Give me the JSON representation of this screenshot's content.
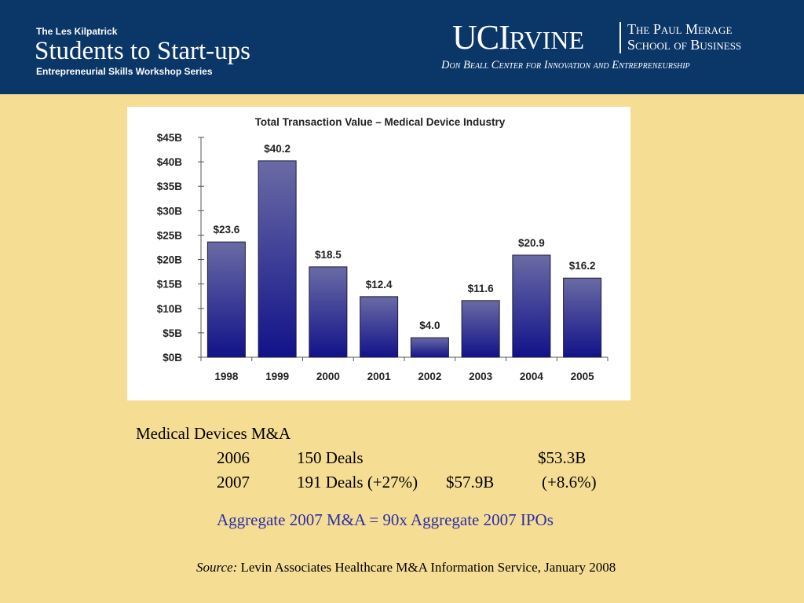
{
  "header": {
    "series_top": "The Les Kilpatrick",
    "series_title": "Students to Start-ups",
    "series_sub": "Entrepreneurial Skills Workshop Series",
    "logo_uc": "UCI",
    "logo_rvine": "RVINE",
    "school_line1": "The Paul Merage",
    "school_line2": "School of Business",
    "center_name": "Don Beall Center for Innovation and Entrepreneurship"
  },
  "chart_data": {
    "type": "bar",
    "title": "Total Transaction Value – Medical Device Industry",
    "categories": [
      "1998",
      "1999",
      "2000",
      "2001",
      "2002",
      "2003",
      "2004",
      "2005"
    ],
    "values": [
      23.6,
      40.2,
      18.5,
      12.4,
      4.0,
      11.6,
      20.9,
      16.2
    ],
    "data_labels": [
      "$23.6",
      "$40.2",
      "$18.5",
      "$12.4",
      "$4.0",
      "$11.6",
      "$20.9",
      "$16.2"
    ],
    "ylim": [
      0,
      45
    ],
    "yticks": [
      0,
      5,
      10,
      15,
      20,
      25,
      30,
      35,
      40,
      45
    ],
    "ytick_labels": [
      "$0B",
      "$5B",
      "$10B",
      "$15B",
      "$20B",
      "$25B",
      "$30B",
      "$35B",
      "$40B",
      "$45B"
    ],
    "xlabel": "",
    "ylabel": "",
    "grid": false,
    "bar_color_top": "#6a6ba4",
    "bar_color_bottom": "#12128a"
  },
  "body": {
    "heading": "Medical Devices M&A",
    "rows": [
      {
        "year": "2006",
        "deals": "150 Deals",
        "value": "$53.3B",
        "change": ""
      },
      {
        "year": "2007",
        "deals": "191 Deals (+27%)",
        "value": "$57.9B",
        "change": "(+8.6%)"
      }
    ],
    "highlight": "Aggregate 2007 M&A = 90x Aggregate 2007 IPOs",
    "source_label": "Source:",
    "source_text": "Levin Associates Healthcare M&A Information Service, January 2008"
  },
  "colors": {
    "background": "#f6dd94",
    "header": "#0b3668",
    "highlight_text": "#2a2fa8"
  }
}
